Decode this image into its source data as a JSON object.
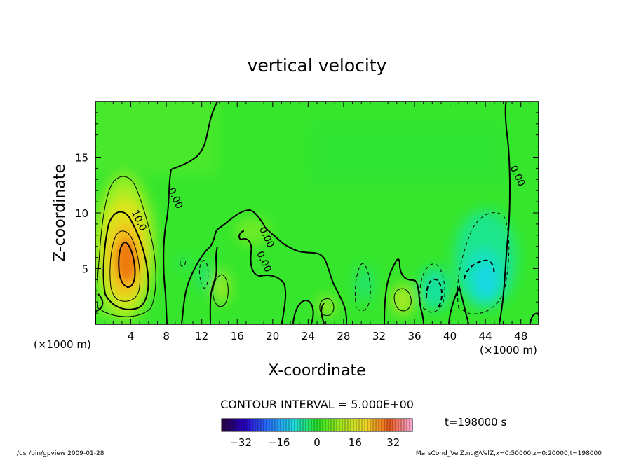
{
  "chart_data": {
    "type": "heatmap",
    "title": "vertical velocity",
    "xlabel": "X-coordinate",
    "ylabel": "Z-coordinate",
    "x_unit": "(×1000 m)",
    "xlim": [
      0,
      50
    ],
    "ylim": [
      0,
      20
    ],
    "x_ticks": [
      4,
      8,
      12,
      16,
      20,
      24,
      28,
      32,
      36,
      40,
      44,
      48
    ],
    "y_ticks": [
      5,
      10,
      15
    ],
    "contour_interval_text": "CONTOUR INTERVAL = 5.000E+00",
    "contour_interval": 5.0,
    "contour_labels": [
      {
        "text": "10.0",
        "x": 4.6,
        "y": 9.2
      },
      {
        "text": "0.00",
        "x": 8.7,
        "y": 11.2
      },
      {
        "text": "0.00",
        "x": 19.0,
        "y": 7.7
      },
      {
        "text": "0.00",
        "x": 18.7,
        "y": 5.5
      },
      {
        "text": "0.00",
        "x": 47.3,
        "y": 13.2
      }
    ],
    "colorbar": {
      "range": [
        -40,
        40
      ],
      "ticks": [
        -32,
        -16,
        0,
        16,
        32
      ]
    },
    "time_label": "t=198000 s",
    "features": {
      "updrafts": [
        {
          "x": 3.6,
          "z": 6.0,
          "peak": 25
        },
        {
          "x": 14.3,
          "z": 3.2,
          "peak": 7
        },
        {
          "x": 26.0,
          "z": 1.5,
          "peak": 6
        },
        {
          "x": 34.5,
          "z": 2.3,
          "peak": 7
        }
      ],
      "downdrafts": [
        {
          "x": 44.0,
          "z": 4.0,
          "peak": -12
        },
        {
          "x": 38.5,
          "z": 3.0,
          "peak": -9
        }
      ]
    }
  },
  "footer": {
    "left": "/usr/bin/gpview  2009-01-28",
    "right": "MarsCond_VelZ.nc@VelZ,x=0:50000,z=0:20000,t=198000"
  }
}
